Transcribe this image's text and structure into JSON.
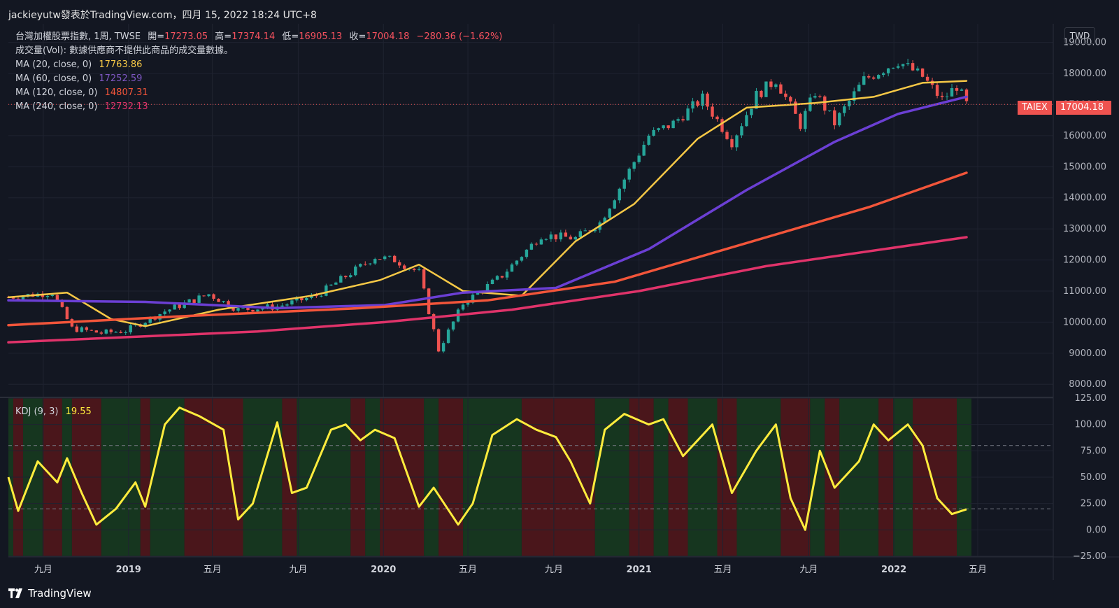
{
  "header": {
    "publisher": "jackieyutw發表於TradingView.com，四月 15, 2022 18:24 UTC+8"
  },
  "legend": {
    "symbol": "台灣加權股票指數, 1周, TWSE",
    "open_label": "開=",
    "open": "17273.05",
    "high_label": "高=",
    "high": "17374.14",
    "low_label": "低=",
    "low": "16905.13",
    "close_label": "收=",
    "close": "17004.18",
    "change": "−280.36 (−1.62%)",
    "volume": "成交量(Vol): 數據供應商不提供此商品的成交量數據。",
    "ma20_label": "MA (20, close, 0)",
    "ma20_value": "17763.86",
    "ma60_label": "MA (60, close, 0)",
    "ma60_value": "17252.59",
    "ma120_label": "MA (120, close, 0)",
    "ma120_value": "14807.31",
    "ma240_label": "MA (240, close, 0)",
    "ma240_value": "12732.13"
  },
  "kdj_legend": {
    "label": "KDJ (9, 3)",
    "value": "19.55"
  },
  "current_price": {
    "symbol": "TAIEX",
    "value": "17004.18"
  },
  "currency": "TWD",
  "footer": {
    "brand": "TradingView"
  },
  "colors": {
    "background": "#131722",
    "up": "#26a69a",
    "down": "#ef5350",
    "ma20": "#f6c846",
    "ma60": "#6b3fd4",
    "ma120": "#f2553a",
    "ma240": "#e0336a",
    "kdj": "#ffec3d",
    "kdj_bull_bg": "#16361f",
    "kdj_bear_bg": "#4a161b"
  },
  "chart_data": [
    {
      "type": "candlestick",
      "interval": "1 week",
      "x_ticks": [
        "九月",
        "2019",
        "五月",
        "九月",
        "2020",
        "五月",
        "九月",
        "2021",
        "五月",
        "九月",
        "2022",
        "五月"
      ],
      "y_ticks": [
        "19000.00",
        "18000.00",
        "17000.00",
        "16000.00",
        "15000.00",
        "14000.00",
        "13000.00",
        "12000.00",
        "11000.00",
        "10000.00",
        "9000.00",
        "8000.00"
      ],
      "ylim": [
        7600,
        19600
      ],
      "grid": true,
      "close_path": [
        [
          "2018-07-13",
          10800
        ],
        [
          "2018-09-14",
          10950
        ],
        [
          "2018-10-12",
          9800
        ],
        [
          "2018-11-23",
          9650
        ],
        [
          "2018-12-28",
          9720
        ],
        [
          "2019-02-22",
          10350
        ],
        [
          "2019-04-26",
          10900
        ],
        [
          "2019-06-07",
          10400
        ],
        [
          "2019-08-02",
          10500
        ],
        [
          "2019-09-27",
          10850
        ],
        [
          "2019-12-20",
          12100
        ],
        [
          "2020-01-17",
          12000
        ],
        [
          "2020-02-21",
          11600
        ],
        [
          "2020-03-20",
          9100
        ],
        [
          "2020-04-24",
          10600
        ],
        [
          "2020-06-19",
          11500
        ],
        [
          "2020-08-14",
          12800
        ],
        [
          "2020-10-02",
          12700
        ],
        [
          "2020-11-06",
          13200
        ],
        [
          "2021-01-15",
          16000
        ],
        [
          "2021-02-19",
          16400
        ],
        [
          "2021-04-02",
          17200
        ],
        [
          "2021-05-14",
          15800
        ],
        [
          "2021-06-18",
          17300
        ],
        [
          "2021-07-16",
          17800
        ],
        [
          "2021-08-20",
          16350
        ],
        [
          "2021-09-10",
          17400
        ],
        [
          "2021-10-08",
          16400
        ],
        [
          "2021-11-19",
          17800
        ],
        [
          "2022-01-07",
          18400
        ],
        [
          "2022-02-11",
          17900
        ],
        [
          "2022-03-11",
          17150
        ],
        [
          "2022-04-01",
          17600
        ],
        [
          "2022-04-15",
          17004.18
        ]
      ],
      "series": [
        {
          "name": "MA (20, close, 0)",
          "points": [
            [
              "2018-07-13",
              10800
            ],
            [
              "2018-10-05",
              10950
            ],
            [
              "2018-12-07",
              10100
            ],
            [
              "2019-01-25",
              9870
            ],
            [
              "2019-05-10",
              10400
            ],
            [
              "2019-09-20",
              10850
            ],
            [
              "2019-12-27",
              11350
            ],
            [
              "2020-02-21",
              11850
            ],
            [
              "2020-04-24",
              11000
            ],
            [
              "2020-07-17",
              10850
            ],
            [
              "2020-10-02",
              12600
            ],
            [
              "2020-12-25",
              13800
            ],
            [
              "2021-03-26",
              15900
            ],
            [
              "2021-06-04",
              16900
            ],
            [
              "2021-09-10",
              17050
            ],
            [
              "2021-12-03",
              17250
            ],
            [
              "2022-02-11",
              17700
            ],
            [
              "2022-04-15",
              17763.86
            ]
          ]
        },
        {
          "name": "MA (60, close, 0)",
          "points": [
            [
              "2018-07-13",
              10700
            ],
            [
              "2019-01-25",
              10650
            ],
            [
              "2019-08-02",
              10450
            ],
            [
              "2020-01-03",
              10550
            ],
            [
              "2020-04-24",
              10950
            ],
            [
              "2020-09-04",
              11100
            ],
            [
              "2021-01-15",
              12350
            ],
            [
              "2021-06-04",
              14250
            ],
            [
              "2021-10-08",
              15800
            ],
            [
              "2022-01-07",
              16700
            ],
            [
              "2022-04-15",
              17252.59
            ]
          ]
        },
        {
          "name": "MA (120, close, 0)",
          "points": [
            [
              "2018-07-13",
              9900
            ],
            [
              "2019-03-29",
              10200
            ],
            [
              "2019-11-29",
              10450
            ],
            [
              "2020-05-29",
              10700
            ],
            [
              "2020-11-27",
              11300
            ],
            [
              "2021-05-28",
              12500
            ],
            [
              "2021-11-26",
              13700
            ],
            [
              "2022-04-15",
              14807.31
            ]
          ]
        },
        {
          "name": "MA (240, close, 0)",
          "points": [
            [
              "2018-07-13",
              9350
            ],
            [
              "2019-07-05",
              9700
            ],
            [
              "2020-01-03",
              10000
            ],
            [
              "2020-07-03",
              10400
            ],
            [
              "2021-01-01",
              11000
            ],
            [
              "2021-07-02",
              11800
            ],
            [
              "2022-04-15",
              12732.13
            ]
          ]
        }
      ]
    },
    {
      "type": "line",
      "name": "KDJ (9, 3)",
      "ylim": [
        -25,
        125
      ],
      "y_ticks": [
        "125.00",
        "100.00",
        "75.00",
        "50.00",
        "25.00",
        "0.00",
        "−25.00"
      ],
      "reference_lines": [
        80,
        20
      ],
      "series": [
        {
          "name": "KDJ (9, 3)",
          "points": [
            [
              "2018-07-13",
              50
            ],
            [
              "2018-07-27",
              18
            ],
            [
              "2018-08-24",
              65
            ],
            [
              "2018-09-21",
              45
            ],
            [
              "2018-10-05",
              68
            ],
            [
              "2018-10-26",
              35
            ],
            [
              "2018-11-16",
              5
            ],
            [
              "2018-12-14",
              20
            ],
            [
              "2019-01-11",
              45
            ],
            [
              "2019-01-25",
              22
            ],
            [
              "2019-02-22",
              100
            ],
            [
              "2019-03-15",
              116
            ],
            [
              "2019-04-12",
              108
            ],
            [
              "2019-05-17",
              95
            ],
            [
              "2019-06-07",
              10
            ],
            [
              "2019-06-28",
              25
            ],
            [
              "2019-08-02",
              102
            ],
            [
              "2019-08-23",
              35
            ],
            [
              "2019-09-13",
              40
            ],
            [
              "2019-10-18",
              95
            ],
            [
              "2019-11-08",
              100
            ],
            [
              "2019-11-29",
              85
            ],
            [
              "2019-12-20",
              95
            ],
            [
              "2020-01-17",
              87
            ],
            [
              "2020-02-21",
              22
            ],
            [
              "2020-03-13",
              40
            ],
            [
              "2020-04-17",
              5
            ],
            [
              "2020-05-08",
              25
            ],
            [
              "2020-06-05",
              90
            ],
            [
              "2020-07-10",
              105
            ],
            [
              "2020-08-07",
              95
            ],
            [
              "2020-09-04",
              88
            ],
            [
              "2020-09-25",
              65
            ],
            [
              "2020-10-23",
              25
            ],
            [
              "2020-11-13",
              95
            ],
            [
              "2020-12-11",
              110
            ],
            [
              "2021-01-15",
              100
            ],
            [
              "2021-02-05",
              105
            ],
            [
              "2021-03-05",
              70
            ],
            [
              "2021-03-26",
              85
            ],
            [
              "2021-04-16",
              100
            ],
            [
              "2021-05-14",
              35
            ],
            [
              "2021-06-18",
              75
            ],
            [
              "2021-07-16",
              100
            ],
            [
              "2021-08-06",
              30
            ],
            [
              "2021-08-27",
              0
            ],
            [
              "2021-09-17",
              75
            ],
            [
              "2021-10-08",
              40
            ],
            [
              "2021-11-12",
              65
            ],
            [
              "2021-12-03",
              100
            ],
            [
              "2021-12-24",
              85
            ],
            [
              "2022-01-21",
              100
            ],
            [
              "2022-02-11",
              80
            ],
            [
              "2022-03-04",
              30
            ],
            [
              "2022-03-25",
              15
            ],
            [
              "2022-04-15",
              19.55
            ]
          ]
        }
      ]
    }
  ]
}
